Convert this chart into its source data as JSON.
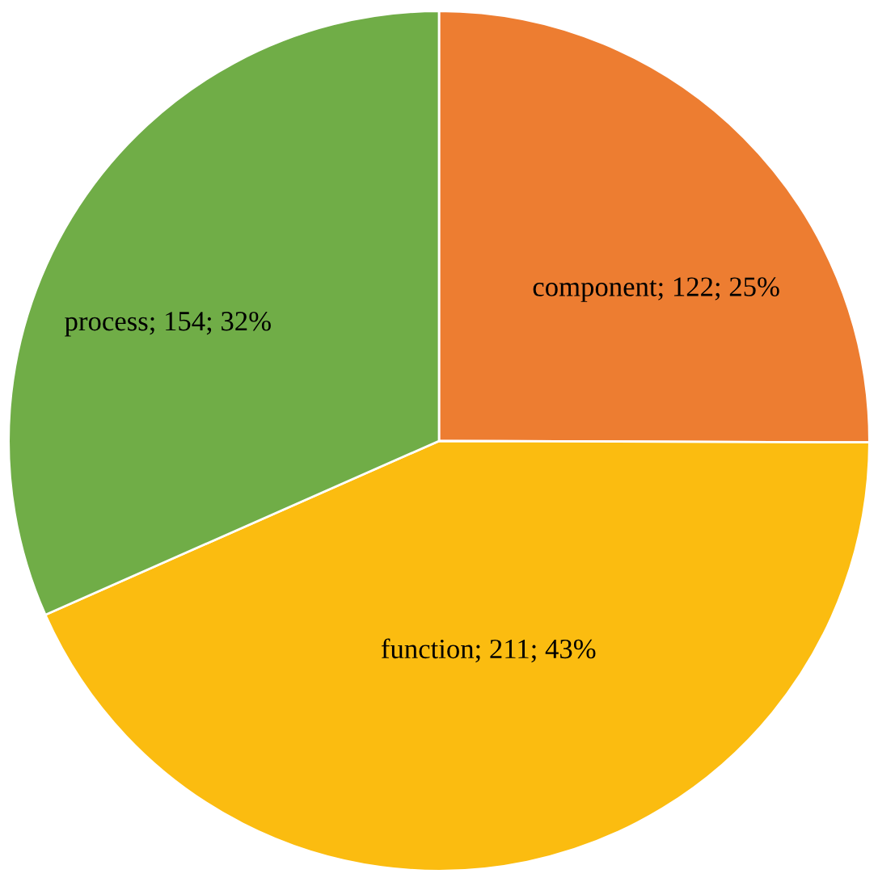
{
  "chart_data": {
    "type": "pie",
    "categories": [
      "component",
      "function",
      "process"
    ],
    "values": [
      122,
      211,
      154
    ],
    "colors": [
      "#ed7d31",
      "#fbbc10",
      "#70ad47"
    ],
    "value_labels": [
      "122; 25%",
      "211; 43%",
      "154; 32%"
    ]
  }
}
